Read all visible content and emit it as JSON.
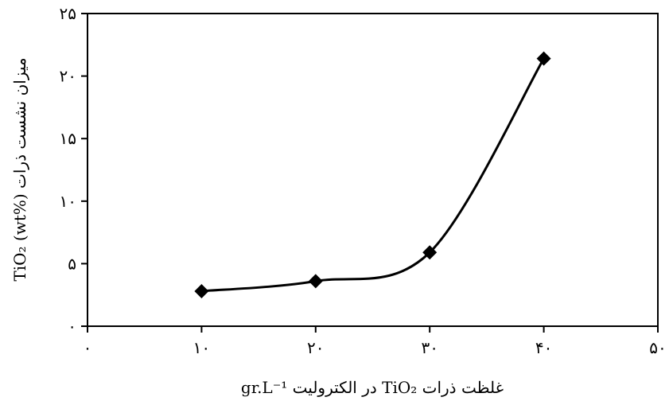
{
  "chart_data": {
    "type": "line",
    "title": "",
    "xlabel": "غلظت ذرات TiO₂ در الکترولیت gr.L⁻¹",
    "ylabel": "میزان نشست ذرات TiO₂ (wt%)",
    "x_ticks": [
      0,
      10,
      20,
      30,
      40,
      50
    ],
    "x_tick_labels": [
      "۰",
      "۱۰",
      "۲۰",
      "۳۰",
      "۴۰",
      "۵۰"
    ],
    "y_ticks": [
      0,
      5,
      10,
      15,
      20,
      25
    ],
    "y_tick_labels": [
      "۰",
      "۵",
      "۱۰",
      "۱۵",
      "۲۰",
      "۲۵"
    ],
    "xlim": [
      0,
      50
    ],
    "ylim": [
      0,
      25
    ],
    "grid": false,
    "legend": "none",
    "marker": "diamond",
    "line_color": "#000000",
    "series": [
      {
        "x": [
          10,
          20,
          30,
          40
        ],
        "y": [
          2.8,
          3.6,
          5.9,
          21.4
        ]
      }
    ]
  }
}
